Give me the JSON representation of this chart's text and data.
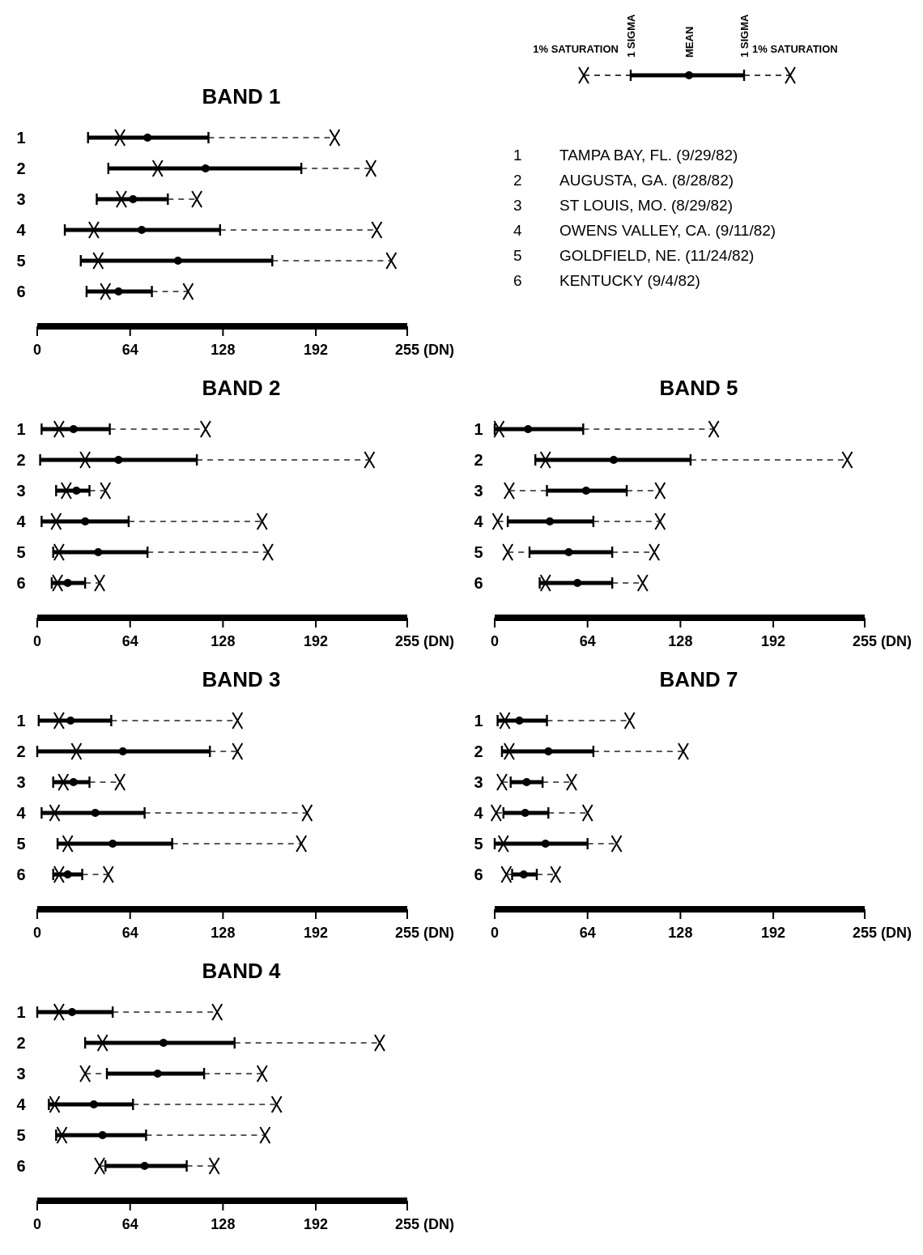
{
  "chart_data": [
    {
      "type": "bar",
      "title": "BAND 1",
      "orientation": "horizontal",
      "categories": [
        "1",
        "2",
        "3",
        "4",
        "5",
        "6"
      ],
      "xlim": [
        0,
        255
      ],
      "xticks": [
        0,
        64,
        128,
        192,
        255
      ],
      "xlabel": "(DN)",
      "annotations": [
        "1% SATURATION",
        "1 SIGMA",
        "MEAN",
        "1 SIGMA",
        "1% SATURATION",
        "1 TAMPA BAY, FL. (9/29/82)",
        "2 AUGUSTA, GA. (8/28/82)",
        "3 ST LOUIS, MO. (8/29/82)",
        "4 OWENS VALLEY, CA. (9/11/82)",
        "5 GOLDFIELD, NE. (11/24/82)",
        "6 KENTUCKY (9/4/82)"
      ],
      "series": [
        {
          "type": "bar",
          "color": "#000000",
          "base": [
            35,
            49,
            41,
            19,
            30,
            34
          ],
          "values": [
            83,
            133,
            49,
            107,
            132,
            45
          ]
        },
        {
          "type": "scatter",
          "color": "#000000",
          "marker": "circle",
          "values": [
            76,
            116,
            66,
            72,
            97,
            56
          ]
        },
        {
          "type": "scatter",
          "color": "#000000",
          "marker": "cross",
          "values": [
            57,
            83,
            58,
            39,
            42,
            47
          ]
        },
        {
          "type": "scatter",
          "color": "#000000",
          "marker": "cross",
          "values": [
            205,
            230,
            110,
            234,
            244,
            104
          ]
        }
      ]
    },
    {
      "type": "bar",
      "title": "BAND 2",
      "orientation": "horizontal",
      "categories": [
        "1",
        "2",
        "3",
        "4",
        "5",
        "6"
      ],
      "xlim": [
        0,
        255
      ],
      "xticks": [
        0,
        64,
        128,
        192,
        255
      ],
      "xlabel": "(DN)",
      "series": [
        {
          "type": "bar",
          "color": "#000000",
          "base": [
            3,
            2,
            13,
            3,
            11,
            10
          ],
          "values": [
            47,
            108,
            23,
            60,
            65,
            23
          ]
        },
        {
          "type": "scatter",
          "color": "#000000",
          "marker": "circle",
          "values": [
            25,
            56,
            27,
            33,
            42,
            21
          ]
        },
        {
          "type": "scatter",
          "color": "#000000",
          "marker": "cross",
          "values": [
            15,
            33,
            20,
            13,
            15,
            14
          ]
        },
        {
          "type": "scatter",
          "color": "#000000",
          "marker": "cross",
          "values": [
            116,
            229,
            47,
            155,
            159,
            43
          ]
        }
      ]
    },
    {
      "type": "bar",
      "title": "BAND 5",
      "orientation": "horizontal",
      "categories": [
        "1",
        "2",
        "3",
        "4",
        "5",
        "6"
      ],
      "xlim": [
        0,
        255
      ],
      "xticks": [
        0,
        64,
        128,
        192,
        255
      ],
      "xlabel": "(DN)",
      "series": [
        {
          "type": "bar",
          "color": "#000000",
          "base": [
            0,
            28,
            36,
            9,
            24,
            31
          ],
          "values": [
            61,
            107,
            55,
            59,
            57,
            50
          ]
        },
        {
          "type": "scatter",
          "color": "#000000",
          "marker": "circle",
          "values": [
            23,
            82,
            63,
            38,
            51,
            57
          ]
        },
        {
          "type": "scatter",
          "color": "#000000",
          "marker": "cross",
          "values": [
            3,
            35,
            10,
            2,
            9,
            35
          ]
        },
        {
          "type": "scatter",
          "color": "#000000",
          "marker": "cross",
          "values": [
            151,
            243,
            114,
            114,
            110,
            102
          ]
        }
      ]
    },
    {
      "type": "bar",
      "title": "BAND 3",
      "orientation": "horizontal",
      "categories": [
        "1",
        "2",
        "3",
        "4",
        "5",
        "6"
      ],
      "xlim": [
        0,
        255
      ],
      "xticks": [
        0,
        64,
        128,
        192,
        255
      ],
      "xlabel": "(DN)",
      "series": [
        {
          "type": "bar",
          "color": "#000000",
          "base": [
            1,
            0,
            11,
            3,
            14,
            11
          ],
          "values": [
            50,
            119,
            25,
            71,
            79,
            20
          ]
        },
        {
          "type": "scatter",
          "color": "#000000",
          "marker": "circle",
          "values": [
            23,
            59,
            25,
            40,
            52,
            21
          ]
        },
        {
          "type": "scatter",
          "color": "#000000",
          "marker": "cross",
          "values": [
            15,
            27,
            18,
            12,
            21,
            15
          ]
        },
        {
          "type": "scatter",
          "color": "#000000",
          "marker": "cross",
          "values": [
            138,
            138,
            57,
            186,
            182,
            49
          ]
        }
      ]
    },
    {
      "type": "bar",
      "title": "BAND 7",
      "orientation": "horizontal",
      "categories": [
        "1",
        "2",
        "3",
        "4",
        "5",
        "6"
      ],
      "xlim": [
        0,
        255
      ],
      "xticks": [
        0,
        64,
        128,
        192,
        255
      ],
      "xlabel": "(DN)",
      "series": [
        {
          "type": "bar",
          "color": "#000000",
          "base": [
            2,
            5,
            11,
            6,
            0,
            12
          ],
          "values": [
            34,
            63,
            22,
            31,
            64,
            17
          ]
        },
        {
          "type": "scatter",
          "color": "#000000",
          "marker": "circle",
          "values": [
            17,
            37,
            22,
            21,
            35,
            20
          ]
        },
        {
          "type": "scatter",
          "color": "#000000",
          "marker": "cross",
          "values": [
            7,
            10,
            5,
            1,
            6,
            8
          ]
        },
        {
          "type": "scatter",
          "color": "#000000",
          "marker": "cross",
          "values": [
            93,
            130,
            53,
            64,
            84,
            42
          ]
        }
      ]
    },
    {
      "type": "bar",
      "title": "BAND 4",
      "orientation": "horizontal",
      "categories": [
        "1",
        "2",
        "3",
        "4",
        "5",
        "6"
      ],
      "xlim": [
        0,
        255
      ],
      "xticks": [
        0,
        64,
        128,
        192,
        255
      ],
      "xlabel": "(DN)",
      "series": [
        {
          "type": "bar",
          "color": "#000000",
          "base": [
            0,
            33,
            48,
            8,
            13,
            47
          ],
          "values": [
            52,
            103,
            67,
            58,
            62,
            56
          ]
        },
        {
          "type": "scatter",
          "color": "#000000",
          "marker": "circle",
          "values": [
            24,
            87,
            83,
            39,
            45,
            74
          ]
        },
        {
          "type": "scatter",
          "color": "#000000",
          "marker": "cross",
          "values": [
            15,
            45,
            33,
            12,
            17,
            43
          ]
        },
        {
          "type": "scatter",
          "color": "#000000",
          "marker": "cross",
          "values": [
            124,
            236,
            155,
            165,
            157,
            122
          ]
        }
      ]
    }
  ]
}
